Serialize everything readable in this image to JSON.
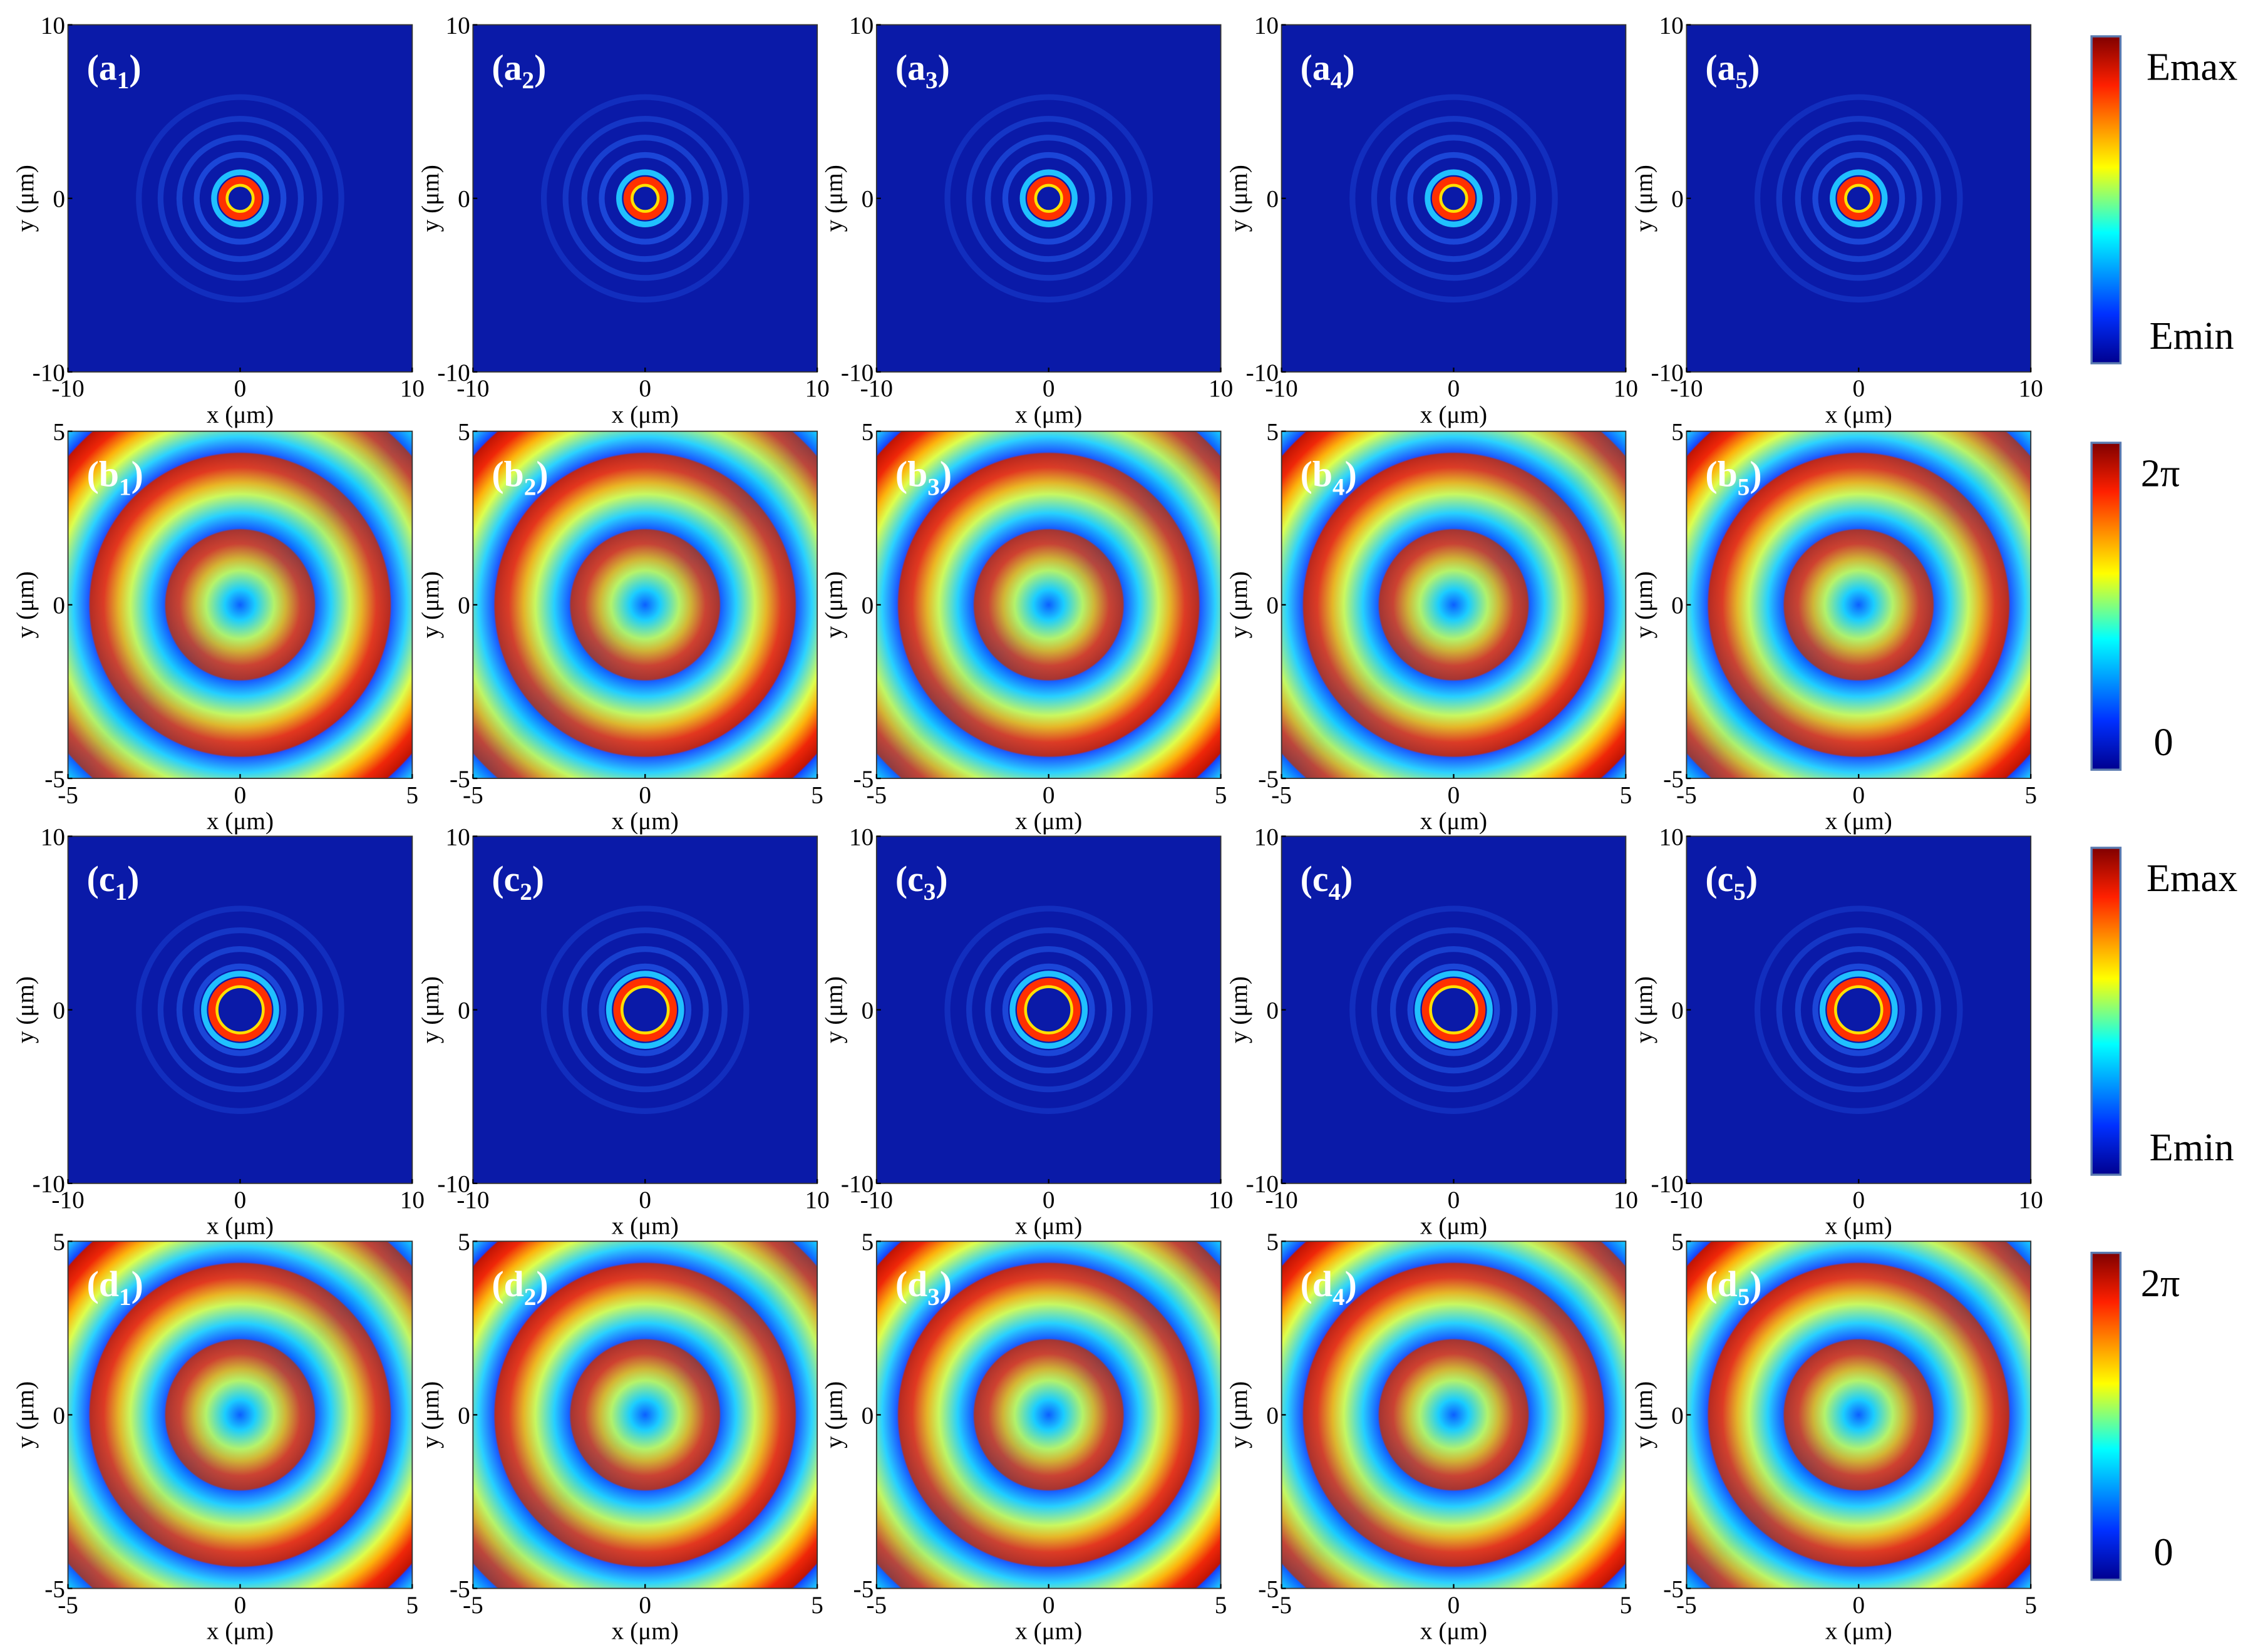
{
  "rows": [
    {
      "type": "intensity",
      "ticks": [
        -10,
        0,
        10
      ],
      "panels": [
        {
          "prefix": "(a",
          "sub": "1",
          "suffix": ")"
        },
        {
          "prefix": "(a",
          "sub": "2",
          "suffix": ")"
        },
        {
          "prefix": "(a",
          "sub": "3",
          "suffix": ")"
        },
        {
          "prefix": "(a",
          "sub": "4",
          "suffix": ")"
        },
        {
          "prefix": "(a",
          "sub": "5",
          "suffix": ")"
        }
      ],
      "colorbar": {
        "top": "Emax",
        "bottom": "Emin"
      }
    },
    {
      "type": "phase",
      "ticks": [
        -5,
        0,
        5
      ],
      "panels": [
        {
          "prefix": "(b",
          "sub": "1",
          "suffix": ")"
        },
        {
          "prefix": "(b",
          "sub": "2",
          "suffix": ")"
        },
        {
          "prefix": "(b",
          "sub": "3",
          "suffix": ")"
        },
        {
          "prefix": "(b",
          "sub": "4",
          "suffix": ")"
        },
        {
          "prefix": "(b",
          "sub": "5",
          "suffix": ")"
        }
      ],
      "colorbar": {
        "top": "2π",
        "bottom": "0"
      }
    },
    {
      "type": "intensity",
      "ticks": [
        -10,
        0,
        10
      ],
      "panels": [
        {
          "prefix": "(c",
          "sub": "1",
          "suffix": ")"
        },
        {
          "prefix": "(c",
          "sub": "2",
          "suffix": ")"
        },
        {
          "prefix": "(c",
          "sub": "3",
          "suffix": ")"
        },
        {
          "prefix": "(c",
          "sub": "4",
          "suffix": ")"
        },
        {
          "prefix": "(c",
          "sub": "5",
          "suffix": ")"
        }
      ],
      "colorbar": {
        "top": "Emax",
        "bottom": "Emin"
      }
    },
    {
      "type": "phase",
      "ticks": [
        -5,
        0,
        5
      ],
      "panels": [
        {
          "prefix": "(d",
          "sub": "1",
          "suffix": ")"
        },
        {
          "prefix": "(d",
          "sub": "2",
          "suffix": ")"
        },
        {
          "prefix": "(d",
          "sub": "3",
          "suffix": ")"
        },
        {
          "prefix": "(d",
          "sub": "4",
          "suffix": ")"
        },
        {
          "prefix": "(d",
          "sub": "5",
          "suffix": ")"
        }
      ],
      "colorbar": {
        "top": "2π",
        "bottom": "0"
      }
    }
  ],
  "x_label": "x (μm)",
  "y_label": "y (μm)"
}
